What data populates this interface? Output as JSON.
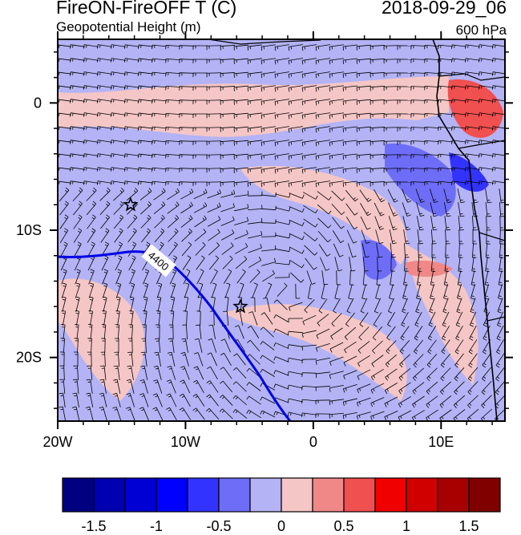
{
  "header": {
    "title": "FireON-FireOFF T (C)",
    "subtitle": "Geopotential Height (m)",
    "datetime": "2018-09-29_06",
    "level": "600 hPa"
  },
  "map": {
    "lon_range": [
      -20,
      15
    ],
    "lat_range": [
      -25,
      5
    ],
    "x_ticks": [
      {
        "value": -20,
        "label": "20W"
      },
      {
        "value": -10,
        "label": "10W"
      },
      {
        "value": 0,
        "label": "0"
      },
      {
        "value": 10,
        "label": "10E"
      }
    ],
    "y_ticks": [
      {
        "value": 0,
        "label": "0"
      },
      {
        "value": -10,
        "label": "10S"
      },
      {
        "value": -20,
        "label": "20S"
      }
    ],
    "contour_label": "4400",
    "colors": {
      "background_blue": "#b3b3f5",
      "pink": "#f5c6c6",
      "contour": "#0000e6",
      "coast": "#000000"
    },
    "markers": [
      {
        "name": "star-marker-1",
        "lon": -14.3,
        "lat": -8.0
      },
      {
        "name": "star-marker-2",
        "lon": -5.7,
        "lat": -16.0
      }
    ]
  },
  "colorbar": {
    "colors": [
      "#000080",
      "#0000b0",
      "#0000d4",
      "#0000ff",
      "#3333ff",
      "#6d6df8",
      "#b3b3f5",
      "#f5c6c6",
      "#f08888",
      "#f05050",
      "#f00000",
      "#d00000",
      "#a80000",
      "#800000"
    ],
    "labels": [
      "-1.5",
      "-1",
      "-0.5",
      "0",
      "0.5",
      "1",
      "1.5"
    ]
  }
}
